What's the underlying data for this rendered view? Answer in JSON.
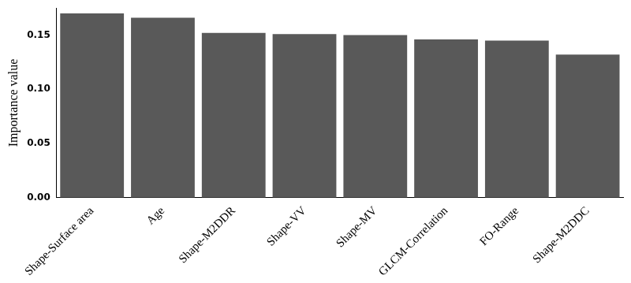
{
  "chart_data": {
    "type": "bar",
    "y_label": "Importance value",
    "categories": [
      "Shape-Surface area",
      "Age",
      "Shape-M2DDR",
      "Shape-VV",
      "Shape-MV",
      "GLCM-Correlation",
      "FO-Range",
      "Shape-M2DDC"
    ],
    "values": [
      0.17,
      0.166,
      0.152,
      0.151,
      0.15,
      0.146,
      0.145,
      0.132
    ],
    "color": "#595959",
    "ylim": [
      0,
      0.175
    ],
    "yticks": [
      {
        "value": 0,
        "label": "0.00"
      },
      {
        "value": 0.05,
        "label": "0.05"
      },
      {
        "value": 0.1,
        "label": "0.10"
      },
      {
        "value": 0.15,
        "label": "0.15"
      }
    ],
    "grid": false
  }
}
